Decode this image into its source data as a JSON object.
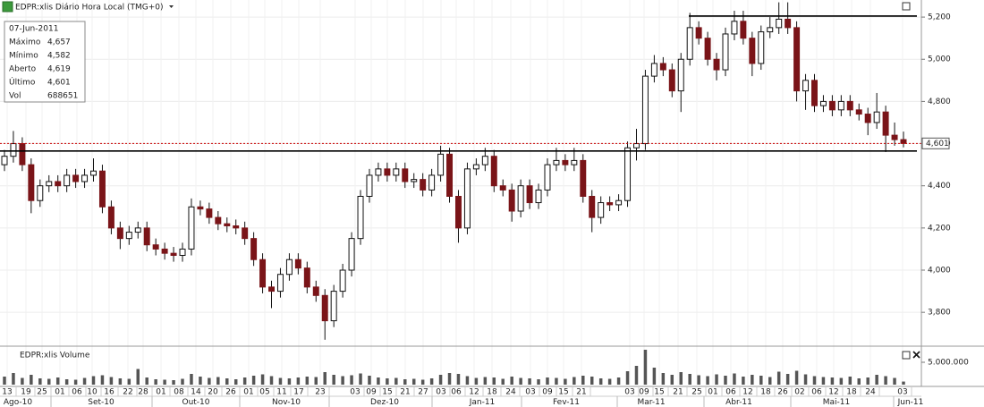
{
  "header": {
    "title": "EDPR:xlis Diário Hora Local (TMG+0)"
  },
  "info_box": {
    "date": "07-Jun-2011",
    "rows": [
      [
        "Máximo",
        "4,657"
      ],
      [
        "Mínimo",
        "4,582"
      ],
      [
        "Aberto",
        "4,619"
      ],
      [
        "Último",
        "4,601"
      ],
      [
        "Vol",
        "688651"
      ]
    ]
  },
  "chart_data": [
    {
      "type": "candlestick",
      "open": [
        4500,
        4540,
        4600,
        4500,
        4330,
        4400,
        4420,
        4400,
        4450,
        4420,
        4450,
        4470,
        4300,
        4200,
        4150,
        4180,
        4200,
        4120,
        4100,
        4080,
        4070,
        4100,
        4300,
        4290,
        4250,
        4220,
        4210,
        4200,
        4150,
        4050,
        3920,
        3900,
        3980,
        4050,
        4010,
        3920,
        3880,
        3760,
        3900,
        4000,
        4150,
        4350,
        4450,
        4480,
        4450,
        4480,
        4420,
        4430,
        4380,
        4450,
        4550,
        4350,
        4200,
        4480,
        4500,
        4540,
        4400,
        4380,
        4280,
        4400,
        4320,
        4380,
        4500,
        4520,
        4500,
        4520,
        4350,
        4250,
        4320,
        4310,
        4330,
        4580,
        4600,
        4920,
        4980,
        4950,
        4850,
        5000,
        5150,
        5100,
        5000,
        4950,
        5120,
        5180,
        5100,
        4980,
        5130,
        5150,
        5190,
        5150,
        4850,
        4900,
        4780,
        4800,
        4760,
        4800,
        4760,
        4740,
        4700,
        4750,
        4640,
        4619
      ],
      "high": [
        4570,
        4660,
        4630,
        4530,
        4430,
        4450,
        4450,
        4480,
        4480,
        4480,
        4530,
        4500,
        4330,
        4230,
        4210,
        4230,
        4230,
        4150,
        4130,
        4110,
        4130,
        4340,
        4330,
        4320,
        4280,
        4250,
        4240,
        4230,
        4180,
        4080,
        3950,
        4010,
        4080,
        4080,
        4040,
        3950,
        3910,
        3930,
        4030,
        4180,
        4380,
        4480,
        4510,
        4510,
        4510,
        4510,
        4460,
        4460,
        4480,
        4590,
        4580,
        4380,
        4510,
        4530,
        4580,
        4570,
        4430,
        4410,
        4430,
        4430,
        4410,
        4530,
        4580,
        4550,
        4580,
        4550,
        4380,
        4350,
        4350,
        4360,
        4610,
        4670,
        4950,
        5020,
        5010,
        4980,
        5030,
        5220,
        5180,
        5130,
        5030,
        5150,
        5230,
        5230,
        5130,
        5160,
        5200,
        5270,
        5270,
        5180,
        4930,
        4930,
        4830,
        4830,
        4830,
        4830,
        4790,
        4770,
        4840,
        4780,
        4700,
        4657
      ],
      "low": [
        4470,
        4510,
        4470,
        4270,
        4300,
        4370,
        4370,
        4370,
        4390,
        4390,
        4420,
        4270,
        4170,
        4100,
        4120,
        4150,
        4090,
        4070,
        4050,
        4040,
        4040,
        4070,
        4260,
        4220,
        4190,
        4180,
        4170,
        4120,
        4020,
        3890,
        3820,
        3870,
        3950,
        3980,
        3890,
        3850,
        3670,
        3730,
        3870,
        3970,
        4120,
        4320,
        4420,
        4420,
        4420,
        4390,
        4390,
        4350,
        4350,
        4420,
        4320,
        4130,
        4170,
        4450,
        4470,
        4370,
        4350,
        4230,
        4250,
        4290,
        4290,
        4350,
        4470,
        4470,
        4470,
        4320,
        4180,
        4220,
        4280,
        4280,
        4300,
        4520,
        4570,
        4890,
        4920,
        4820,
        4750,
        4970,
        5070,
        4970,
        4900,
        4920,
        5090,
        5070,
        4920,
        4950,
        5100,
        5120,
        5120,
        4800,
        4760,
        4750,
        4750,
        4730,
        4730,
        4730,
        4710,
        4640,
        4670,
        4560,
        4590,
        4582
      ],
      "close": [
        4540,
        4600,
        4500,
        4330,
        4400,
        4420,
        4400,
        4450,
        4420,
        4450,
        4470,
        4300,
        4200,
        4150,
        4180,
        4200,
        4120,
        4100,
        4080,
        4070,
        4100,
        4300,
        4290,
        4250,
        4220,
        4210,
        4200,
        4150,
        4050,
        3920,
        3900,
        3980,
        4050,
        4010,
        3920,
        3880,
        3760,
        3900,
        4000,
        4150,
        4350,
        4450,
        4480,
        4450,
        4480,
        4420,
        4430,
        4380,
        4450,
        4550,
        4350,
        4200,
        4480,
        4500,
        4540,
        4400,
        4380,
        4280,
        4400,
        4320,
        4380,
        4500,
        4520,
        4500,
        4520,
        4350,
        4250,
        4320,
        4310,
        4330,
        4580,
        4600,
        4920,
        4980,
        4950,
        4850,
        5000,
        5150,
        5100,
        5000,
        4950,
        5120,
        5180,
        5100,
        4980,
        5130,
        5150,
        5190,
        5150,
        4850,
        4900,
        4780,
        4800,
        4760,
        4800,
        4760,
        4740,
        4700,
        4750,
        4640,
        4619,
        4601
      ],
      "up_color": "#ffffff",
      "down_color": "#7a1418",
      "ylim": [
        3648,
        5281
      ],
      "yticks": [
        {
          "value": 3800,
          "label": "3,800"
        },
        {
          "value": 4000,
          "label": "4,000"
        },
        {
          "value": 4200,
          "label": "4,200"
        },
        {
          "value": 4400,
          "label": "4,400"
        },
        {
          "value": 4600,
          "label": "4,600"
        },
        {
          "value": 4800,
          "label": "4,800"
        },
        {
          "value": 5000,
          "label": "5,000"
        },
        {
          "value": 5200,
          "label": "5,200"
        }
      ],
      "support_lines": [
        4565,
        5205
      ],
      "last_price": {
        "value": 4601,
        "label": "4,601"
      },
      "grid": true
    },
    {
      "type": "volume",
      "title": "EDPR:xlis Volume",
      "color": "#555555",
      "values": [
        1800000,
        2600000,
        1500000,
        2200000,
        1400000,
        1300000,
        1600000,
        1200000,
        1100000,
        1500000,
        1900000,
        2100000,
        1700000,
        1400000,
        1300000,
        3500000,
        1600000,
        1200000,
        1100000,
        1000000,
        1300000,
        2400000,
        1800000,
        1500000,
        1700000,
        1400000,
        1200000,
        1600000,
        2000000,
        2300000,
        1900000,
        1500000,
        1400000,
        1600000,
        1800000,
        1700000,
        2800000,
        2200000,
        1900000,
        2100000,
        2500000,
        2000000,
        1600000,
        1400000,
        1500000,
        1200000,
        1300000,
        1100000,
        1400000,
        2200000,
        2600000,
        2400000,
        1900000,
        1500000,
        1700000,
        1600000,
        1300000,
        1800000,
        1500000,
        1400000,
        1200000,
        1600000,
        1500000,
        1300000,
        1700000,
        2000000,
        1800000,
        1400000,
        1300000,
        1600000,
        3000000,
        4200000,
        7800000,
        3800000,
        2600000,
        2200000,
        2800000,
        2400000,
        2100000,
        1900000,
        2300000,
        2000000,
        2500000,
        1800000,
        2200000,
        2000000,
        1700000,
        2900000,
        2400000,
        3100000,
        2300000,
        1900000,
        1700000,
        1600000,
        1500000,
        1800000,
        1400000,
        1600000,
        2200000,
        1900000,
        1500000,
        688651
      ],
      "ylim": [
        0,
        8000000
      ],
      "yticks": [
        {
          "value": 5000000,
          "label": "5.000.000"
        }
      ],
      "x_day_labels": [
        "13",
        "19",
        "25",
        "01",
        "06",
        "10",
        "16",
        "22",
        "28",
        "01",
        "08",
        "14",
        "20",
        "26",
        "01",
        "05",
        "11",
        "17",
        "23",
        "03",
        "09",
        "15",
        "21",
        "27",
        "03",
        "06",
        "12",
        "18",
        "24",
        "03",
        "09",
        "15",
        "21",
        "03",
        "09",
        "15",
        "21",
        "25",
        "01",
        "06",
        "12",
        "18",
        "26",
        "02",
        "06",
        "12",
        "18",
        "24",
        "03"
      ],
      "x_month_labels": [
        "Ago-10",
        "Set-10",
        "Out-10",
        "Nov-10",
        "Dez-10",
        "Jan-11",
        "Fev-11",
        "Mar-11",
        "Abr-11",
        "Mai-11",
        "Jun-11"
      ]
    }
  ]
}
